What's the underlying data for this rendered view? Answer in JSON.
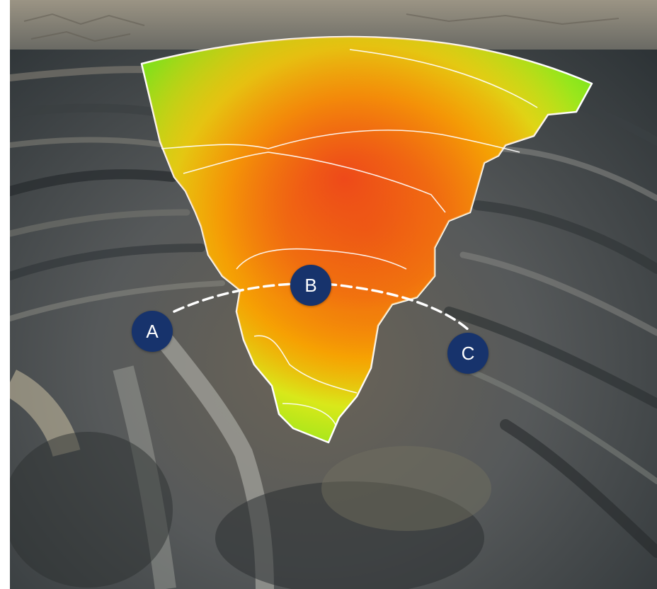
{
  "scene": {
    "colors": {
      "marker_fill": "#17336c",
      "marker_text": "#ffffff",
      "path_line": "#ffffff",
      "heatmap_high": "#e8231a",
      "heatmap_mid": "#f7a500",
      "heatmap_low": "#7ee51c"
    },
    "markers": [
      {
        "label": "A"
      },
      {
        "label": "B"
      },
      {
        "label": "C"
      }
    ]
  }
}
